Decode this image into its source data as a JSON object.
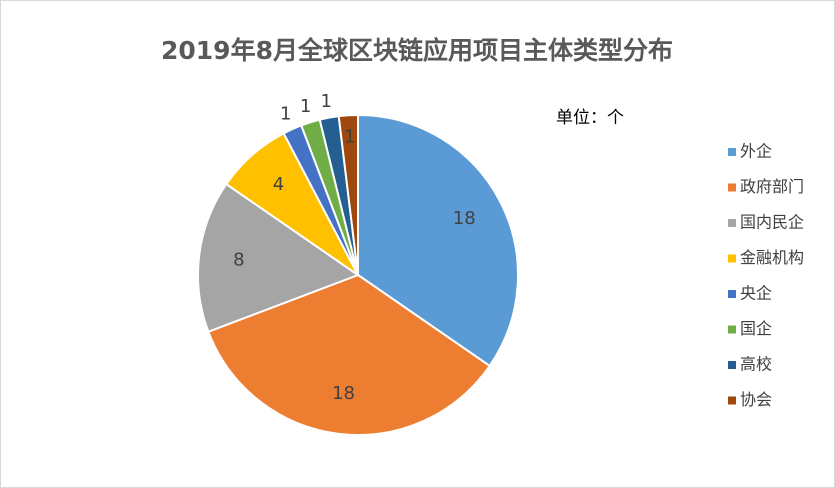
{
  "chart_data": {
    "type": "pie",
    "title": "2019年8月全球区块链应用项目主体类型分布",
    "unit_label": "单位：个",
    "categories": [
      "外企",
      "政府部门",
      "国内民企",
      "金融机构",
      "央企",
      "国企",
      "高校",
      "协会"
    ],
    "values": [
      18,
      18,
      8,
      4,
      1,
      1,
      1,
      1
    ],
    "colors": [
      "#5b9bd5",
      "#ed7d31",
      "#a5a5a5",
      "#ffc000",
      "#4472c4",
      "#70ad47",
      "#255e91",
      "#9e480e"
    ],
    "legend": "right"
  }
}
